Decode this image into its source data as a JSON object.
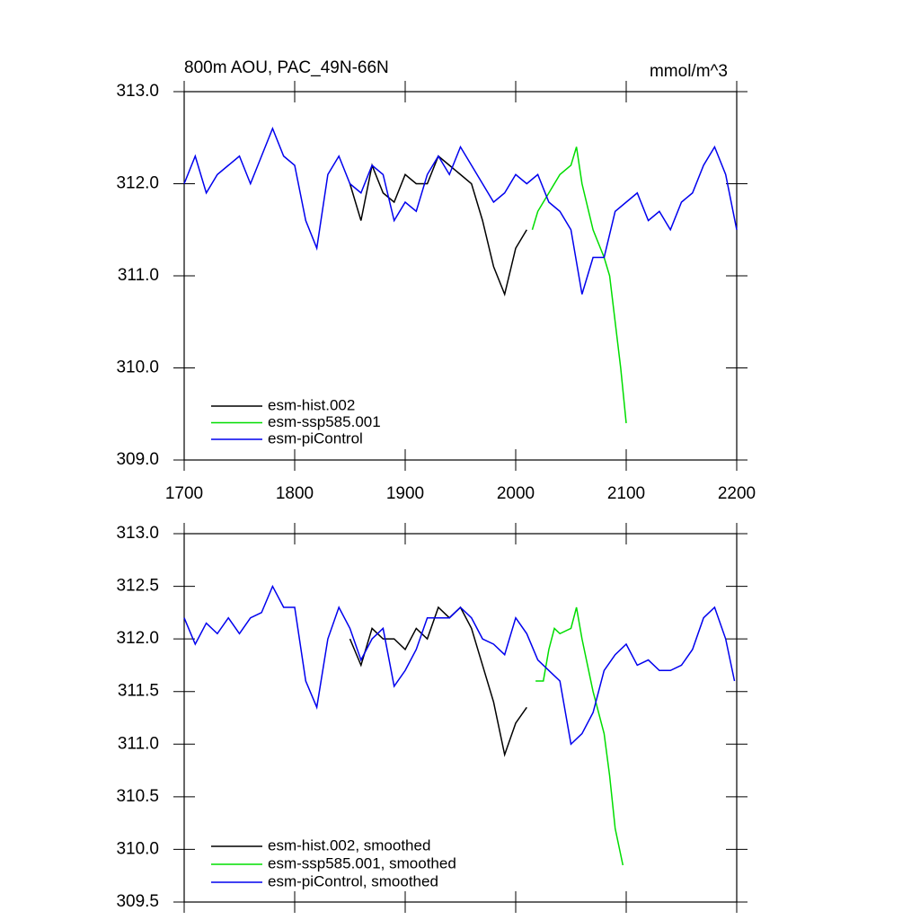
{
  "chart_data": [
    {
      "type": "line",
      "title": "800m AOU, PAC_49N-66N",
      "units": "mmol/m^3",
      "xlim": [
        1700,
        2200
      ],
      "xticks": [
        1700,
        1800,
        1900,
        2000,
        2100,
        2200
      ],
      "ylim": [
        309.0,
        313.0
      ],
      "yticks": [
        {
          "value": 309,
          "label": "309.0"
        },
        {
          "value": 310,
          "label": "310.0"
        },
        {
          "value": 311,
          "label": "311.0"
        },
        {
          "value": 312,
          "label": "312.0"
        },
        {
          "value": 313,
          "label": "313.0"
        }
      ],
      "legend": "lower left",
      "series": [
        {
          "name": "esm-hist.002",
          "color": "#000000",
          "x": [
            1850,
            1860,
            1870,
            1880,
            1890,
            1900,
            1910,
            1920,
            1930,
            1940,
            1950,
            1960,
            1970,
            1980,
            1990,
            2000,
            2010
          ],
          "values": [
            312.0,
            311.6,
            312.2,
            311.9,
            311.8,
            312.1,
            312.0,
            312.0,
            312.3,
            312.2,
            312.1,
            312.0,
            311.6,
            311.1,
            310.8,
            311.3,
            311.5
          ]
        },
        {
          "name": "esm-ssp585.001",
          "color": "#00dd00",
          "x": [
            2015,
            2020,
            2030,
            2040,
            2050,
            2055,
            2060,
            2070,
            2080,
            2085,
            2090,
            2095,
            2100
          ],
          "values": [
            311.5,
            311.7,
            311.9,
            312.1,
            312.2,
            312.4,
            312.0,
            311.5,
            311.2,
            311.0,
            310.5,
            310.0,
            309.4
          ]
        },
        {
          "name": "esm-piControl",
          "color": "#0000ee",
          "x": [
            1700,
            1710,
            1720,
            1730,
            1740,
            1750,
            1760,
            1770,
            1780,
            1790,
            1800,
            1810,
            1820,
            1830,
            1840,
            1850,
            1860,
            1870,
            1880,
            1890,
            1900,
            1910,
            1920,
            1930,
            1940,
            1950,
            1960,
            1970,
            1980,
            1990,
            2000,
            2010,
            2020,
            2030,
            2040,
            2050,
            2060,
            2070,
            2080,
            2090,
            2100,
            2110,
            2120,
            2130,
            2140,
            2150,
            2160,
            2170,
            2180,
            2190,
            2200
          ],
          "values": [
            312.0,
            312.3,
            311.9,
            312.1,
            312.2,
            312.3,
            312.0,
            312.3,
            312.6,
            312.3,
            312.2,
            311.6,
            311.3,
            312.1,
            312.3,
            312.0,
            311.9,
            312.2,
            312.1,
            311.6,
            311.8,
            311.7,
            312.1,
            312.3,
            312.1,
            312.4,
            312.2,
            312.0,
            311.8,
            311.9,
            312.1,
            312.0,
            312.1,
            311.8,
            311.7,
            311.5,
            310.8,
            311.2,
            311.2,
            311.7,
            311.8,
            311.9,
            311.6,
            311.7,
            311.5,
            311.8,
            311.9,
            312.2,
            312.4,
            312.1,
            311.5
          ]
        }
      ]
    },
    {
      "type": "line",
      "xlim": [
        1700,
        2200
      ],
      "xticks": [
        1700,
        1800,
        1900,
        2000,
        2100,
        2200
      ],
      "ylim": [
        309.5,
        313.0
      ],
      "yticks": [
        {
          "value": 309.5,
          "label": "309.5"
        },
        {
          "value": 310,
          "label": "310.0"
        },
        310.5,
        {
          "value": 311,
          "label": "311.0"
        },
        311.5,
        {
          "value": 312,
          "label": "312.0"
        },
        312.5,
        {
          "value": 313,
          "label": "313.0"
        }
      ],
      "legend": "lower left",
      "series": [
        {
          "name": "esm-hist.002, smoothed",
          "color": "#000000",
          "x": [
            1850,
            1860,
            1870,
            1880,
            1890,
            1900,
            1910,
            1920,
            1930,
            1940,
            1950,
            1960,
            1970,
            1980,
            1990,
            2000,
            2010
          ],
          "values": [
            312.0,
            311.75,
            312.1,
            312.0,
            312.0,
            311.9,
            312.1,
            312.0,
            312.3,
            312.2,
            312.3,
            312.1,
            311.75,
            311.4,
            310.9,
            311.2,
            311.35
          ]
        },
        {
          "name": "esm-ssp585.001, smoothed",
          "color": "#00dd00",
          "x": [
            2018,
            2025,
            2030,
            2035,
            2040,
            2050,
            2055,
            2060,
            2070,
            2080,
            2085,
            2090,
            2097
          ],
          "values": [
            311.6,
            311.6,
            311.9,
            312.1,
            312.05,
            312.1,
            312.3,
            312.0,
            311.5,
            311.1,
            310.7,
            310.2,
            309.85
          ]
        },
        {
          "name": "esm-piControl, smoothed",
          "color": "#0000ee",
          "x": [
            1700,
            1710,
            1720,
            1730,
            1740,
            1750,
            1760,
            1770,
            1780,
            1790,
            1800,
            1810,
            1820,
            1830,
            1840,
            1850,
            1860,
            1870,
            1880,
            1890,
            1900,
            1910,
            1920,
            1930,
            1940,
            1950,
            1960,
            1970,
            1980,
            1990,
            2000,
            2010,
            2020,
            2030,
            2040,
            2050,
            2060,
            2070,
            2080,
            2090,
            2100,
            2110,
            2120,
            2130,
            2140,
            2150,
            2160,
            2170,
            2180,
            2190,
            2198
          ],
          "values": [
            312.2,
            311.95,
            312.15,
            312.05,
            312.2,
            312.05,
            312.2,
            312.25,
            312.5,
            312.3,
            312.3,
            311.6,
            311.35,
            312.0,
            312.3,
            312.1,
            311.8,
            312.0,
            312.1,
            311.55,
            311.7,
            311.9,
            312.2,
            312.2,
            312.2,
            312.3,
            312.2,
            312.0,
            311.95,
            311.85,
            312.2,
            312.05,
            311.8,
            311.7,
            311.6,
            311.0,
            311.1,
            311.3,
            311.7,
            311.85,
            311.95,
            311.75,
            311.8,
            311.7,
            311.7,
            311.75,
            311.9,
            312.2,
            312.3,
            312.0,
            311.6
          ]
        }
      ]
    }
  ]
}
